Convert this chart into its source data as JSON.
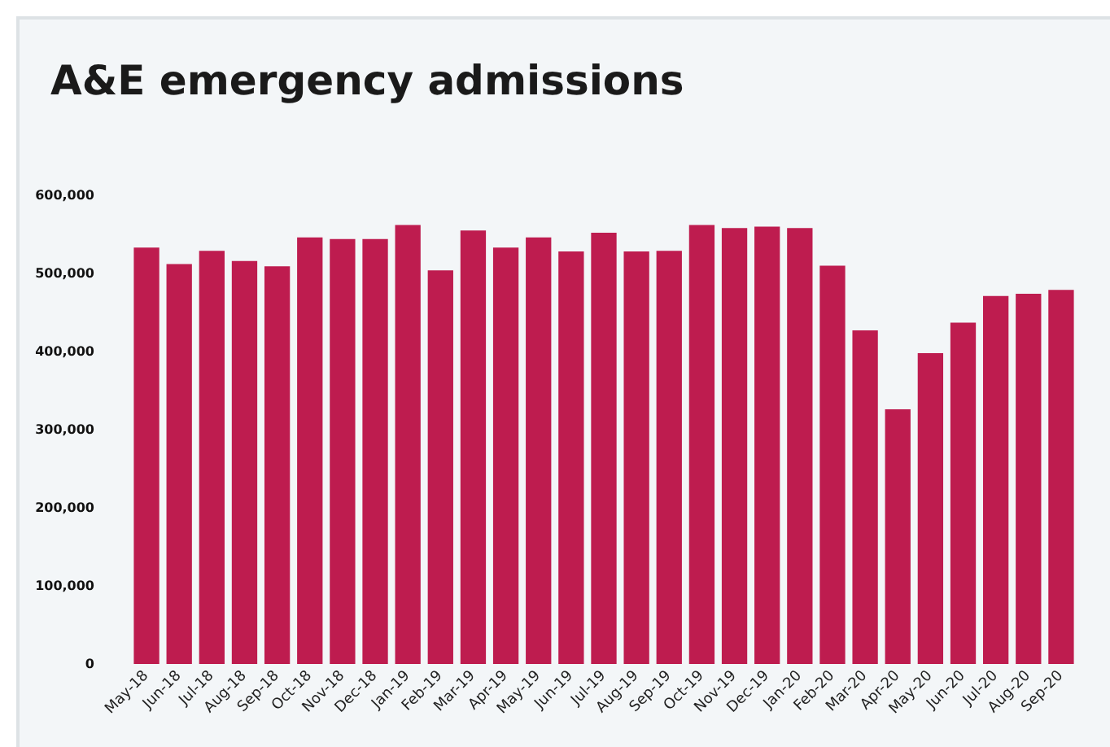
{
  "chart_data": {
    "type": "bar",
    "title": "A&E emergency admissions",
    "categories": [
      "May-18",
      "Jun-18",
      "Jul-18",
      "Aug-18",
      "Sep-18",
      "Oct-18",
      "Nov-18",
      "Dec-18",
      "Jan-19",
      "Feb-19",
      "Mar-19",
      "Apr-19",
      "May-19",
      "Jun-19",
      "Jul-19",
      "Aug-19",
      "Sep-19",
      "Oct-19",
      "Nov-19",
      "Dec-19",
      "Jan-20",
      "Feb-20",
      "Mar-20",
      "Apr-20",
      "May-20",
      "Jun-20",
      "Jul-20",
      "Aug-20",
      "Sep-20"
    ],
    "values": [
      533000,
      512000,
      529000,
      516000,
      509000,
      546000,
      544000,
      544000,
      562000,
      504000,
      555000,
      533000,
      546000,
      528000,
      552000,
      528000,
      529000,
      562000,
      558000,
      560000,
      558000,
      510000,
      427000,
      326000,
      398000,
      437000,
      471000,
      474000,
      479000
    ],
    "color": "#be1c4f",
    "ylim": [
      0,
      600000
    ],
    "yticks": [
      {
        "value": 0,
        "label": "0"
      },
      {
        "value": 100000,
        "label": "100,000"
      },
      {
        "value": 200000,
        "label": "200,000"
      },
      {
        "value": 300000,
        "label": "300,000"
      },
      {
        "value": 400000,
        "label": "400,000"
      },
      {
        "value": 500000,
        "label": "500,000"
      },
      {
        "value": 600000,
        "label": "600,000"
      }
    ],
    "grid": false
  }
}
